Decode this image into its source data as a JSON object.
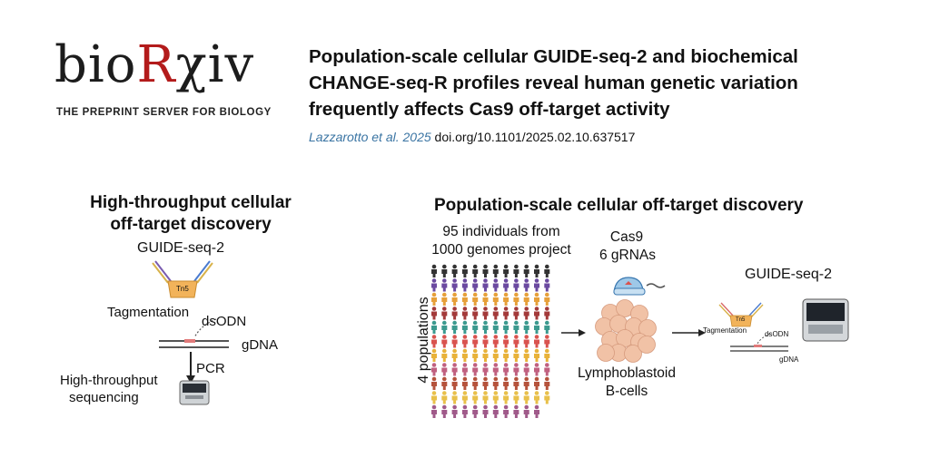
{
  "header": {
    "logo": {
      "bio": "bio",
      "r": "R",
      "xiv": "χiv"
    },
    "tagline": "THE PREPRINT SERVER FOR BIOLOGY",
    "title": "Population-scale cellular GUIDE-seq-2 and biochemical CHANGE-seq-R profiles reveal human genetic variation frequently affects Cas9 off-target activity",
    "authors": "Lazzarotto et al. 2025",
    "doi": "doi.org/10.1101/2025.02.10.637517"
  },
  "left_panel": {
    "heading_line1": "High-throughput cellular",
    "heading_line2": "off-target discovery",
    "guide_seq": "GUIDE-seq-2",
    "tn5": "Tn5",
    "tagmentation": "Tagmentation",
    "dsodn": "dsODN",
    "gdna": "gDNA",
    "pcr": "PCR",
    "hts_line1": "High-throughput",
    "hts_line2": "sequencing"
  },
  "right_panel": {
    "heading": "Population-scale cellular off-target discovery",
    "individuals_line1": "95 individuals from",
    "individuals_line2": "1000 genomes project",
    "populations": "4 populations",
    "cas9": "Cas9",
    "grnas": "6 gRNAs",
    "cells_line1": "Lymphoblastoid",
    "cells_line2": "B-cells",
    "guide_seq": "GUIDE-seq-2",
    "tn5": "Tn5",
    "tagmentation": "Tagmentation",
    "dsodn": "dsODN",
    "gdna": "gDNA"
  },
  "colors": {
    "accent_red": "#b31b1b",
    "author_blue": "#3a74a3",
    "tn5_orange": "#f2b35a",
    "cell_peach": "#f1c2a6",
    "people_rows": [
      "#333333",
      "#6b4aa0",
      "#e6a03a",
      "#a33a3a",
      "#3c9a8f",
      "#d9534f",
      "#e8b23a",
      "#c06080",
      "#b5533c",
      "#e8c04a",
      "#a05a8a"
    ]
  }
}
